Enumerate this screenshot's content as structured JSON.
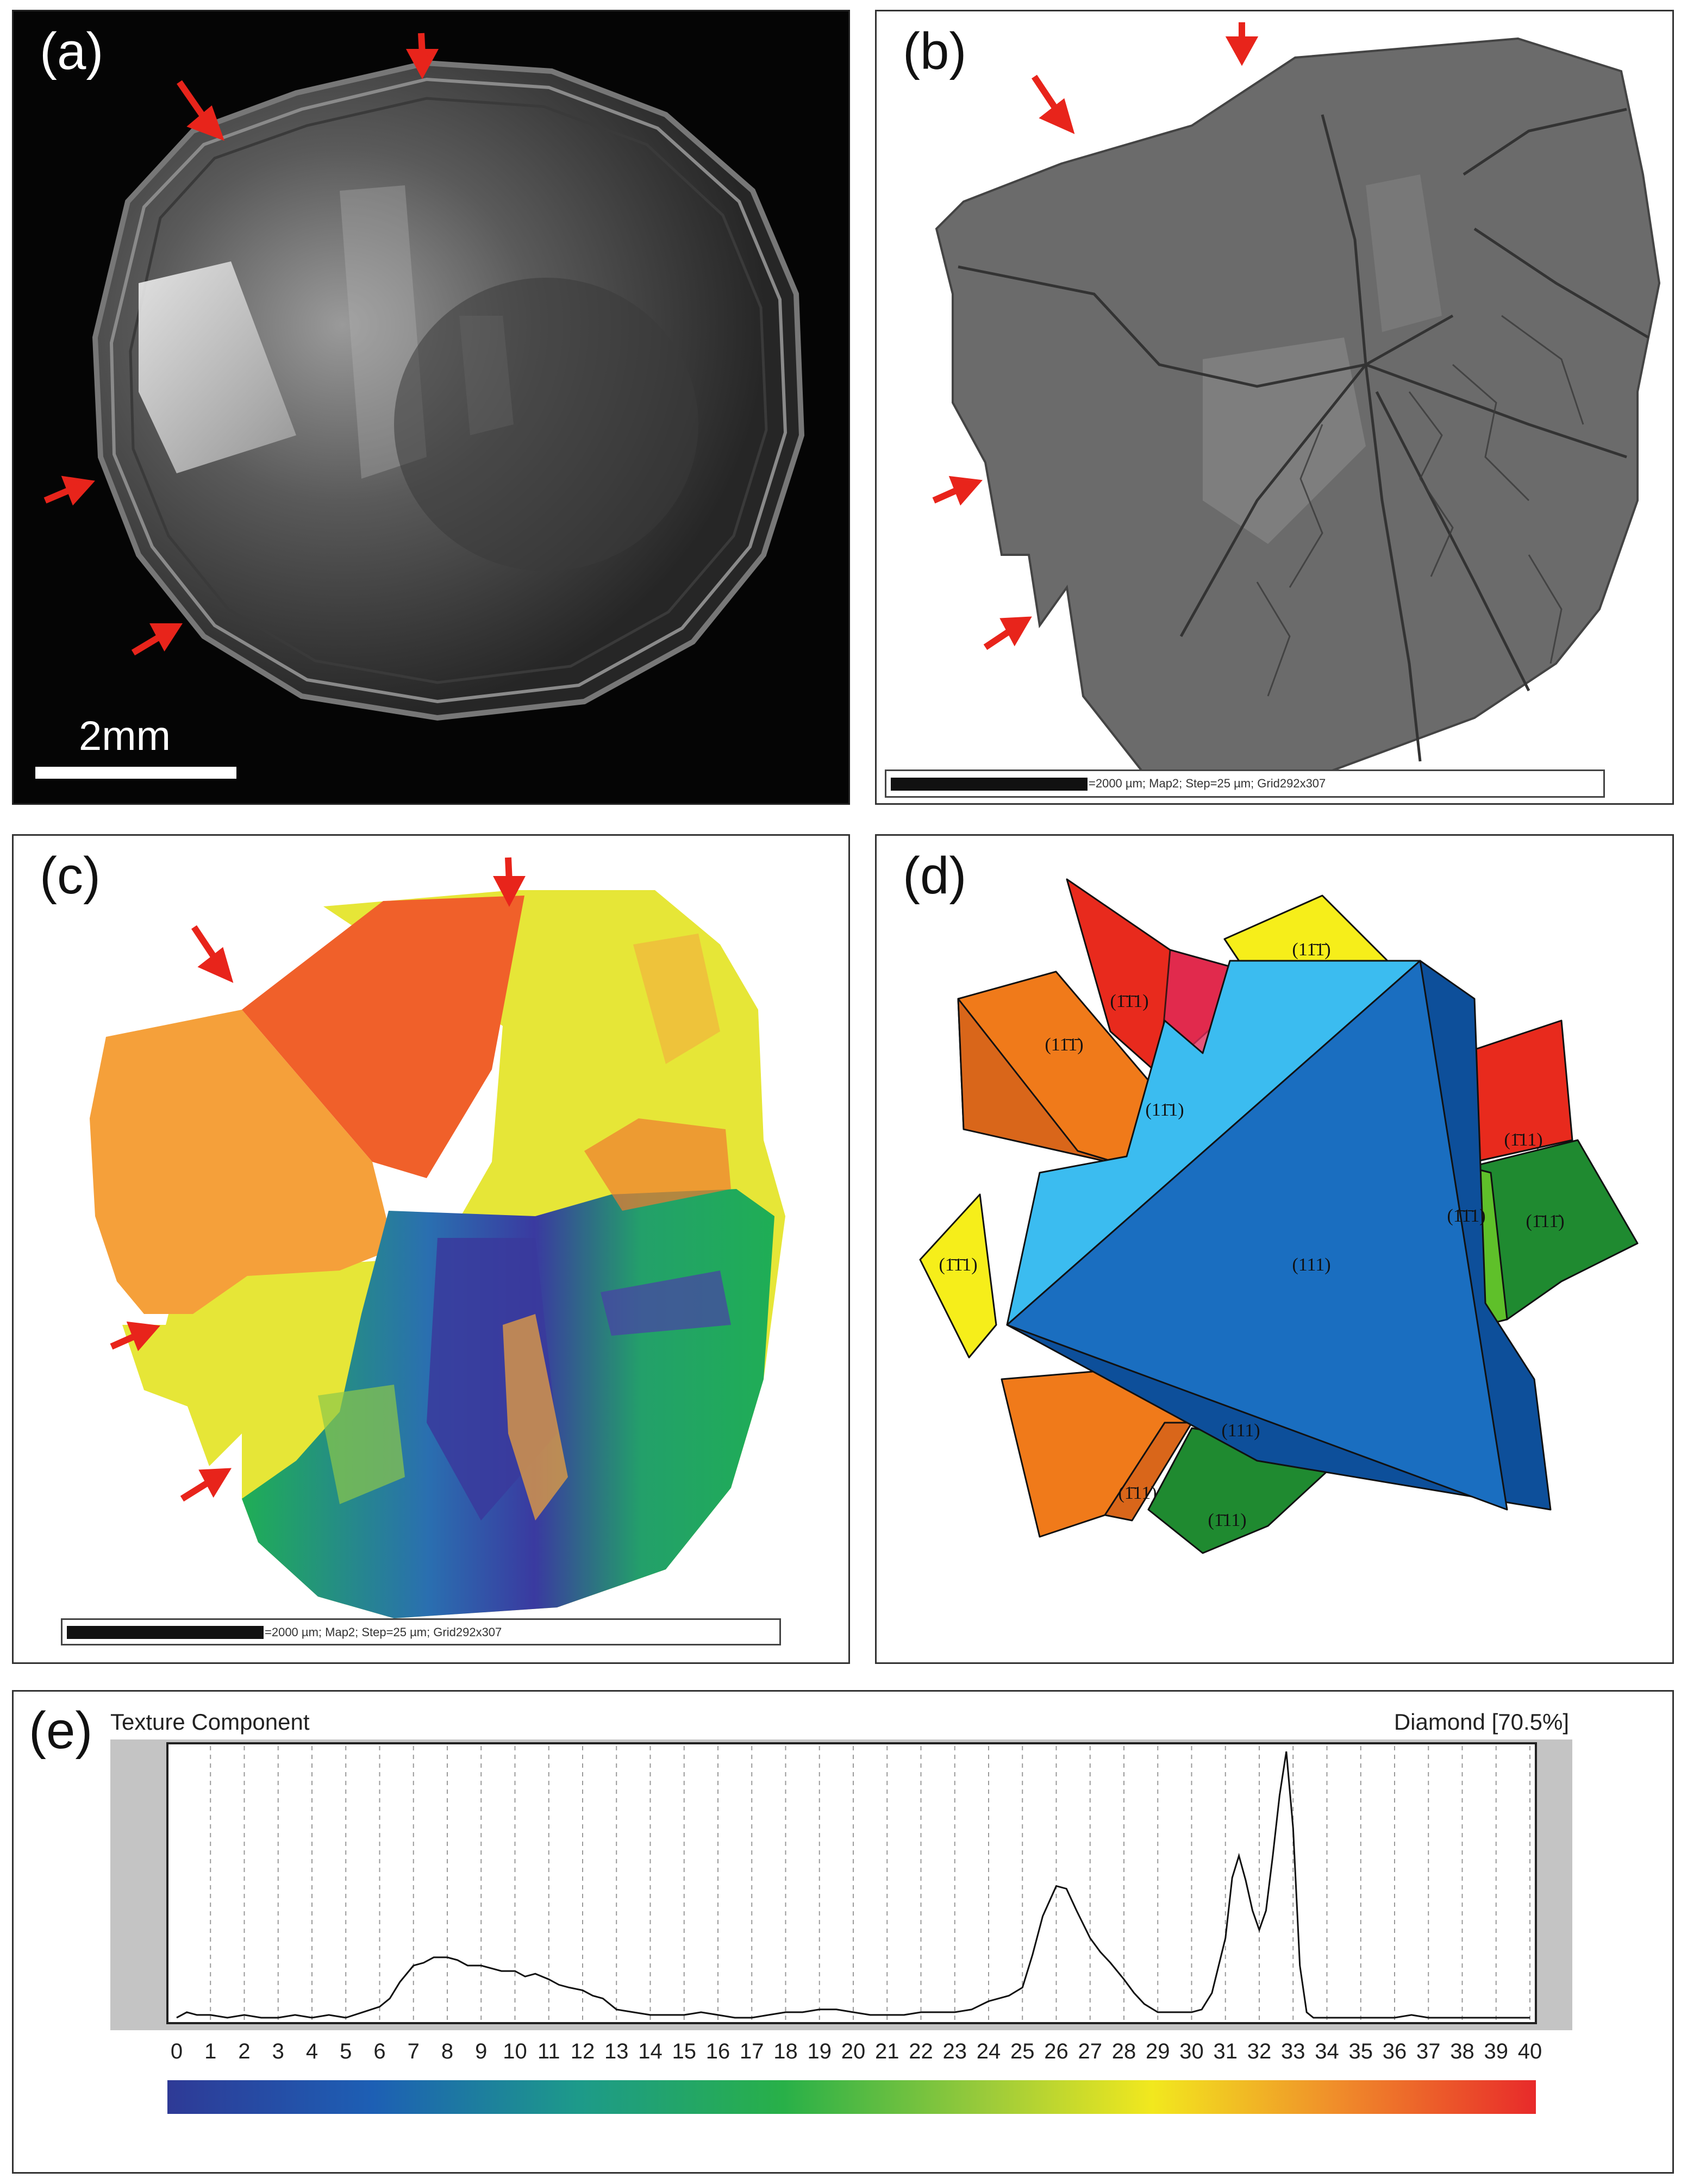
{
  "panels": {
    "a": {
      "label": "(a)",
      "scale_text": "2mm"
    },
    "b": {
      "label": "(b)",
      "scale_text": "=2000 µm; Map2; Step=25 µm; Grid292x307"
    },
    "c": {
      "label": "(c)",
      "scale_text": "=2000 µm; Map2; Step=25 µm; Grid292x307"
    },
    "d": {
      "label": "(d)",
      "facets": [
        {
          "id": "red-top",
          "text": "(1̄1̄1)"
        },
        {
          "id": "orange-left",
          "text": "(11̄1̄)"
        },
        {
          "id": "lightblue",
          "text": "(11̄1)"
        },
        {
          "id": "yellow-top",
          "text": "(11̄1̄)"
        },
        {
          "id": "red-right",
          "text": "(1̄11)"
        },
        {
          "id": "green-right",
          "text": "(1̄11̄)"
        },
        {
          "id": "small-right",
          "text": "(1̄1̄1)"
        },
        {
          "id": "yellow-left",
          "text": "(1̄1̄1)"
        },
        {
          "id": "blue-main",
          "text": "(111)"
        },
        {
          "id": "bottom-small",
          "text": "(111)"
        },
        {
          "id": "orange-bottom",
          "text": "(1̄11)"
        },
        {
          "id": "green-bottom",
          "text": "(1̄11)"
        }
      ]
    },
    "e": {
      "label": "(e)",
      "title_left": "Texture Component",
      "title_right": "Diamond [70.5%]"
    }
  },
  "chart_data": {
    "type": "line",
    "xlabel": "",
    "ylabel": "",
    "xlim": [
      0,
      40
    ],
    "x_ticks": [
      "0",
      "1",
      "2",
      "3",
      "4",
      "5",
      "6",
      "7",
      "8",
      "9",
      "10",
      "11",
      "12",
      "13",
      "14",
      "15",
      "16",
      "17",
      "18",
      "19",
      "20",
      "21",
      "22",
      "23",
      "24",
      "25",
      "26",
      "27",
      "28",
      "29",
      "30",
      "31",
      "32",
      "33",
      "34",
      "35",
      "36",
      "37",
      "38",
      "39",
      "40"
    ],
    "ylim": [
      0,
      100
    ],
    "grid": "vertical dashed",
    "series": [
      {
        "x": [
          0,
          0.3,
          0.6,
          1,
          1.5,
          2,
          2.5,
          3,
          3.5,
          4,
          4.5,
          5,
          5.5,
          6,
          6.3,
          6.6,
          7,
          7.3,
          7.6,
          8,
          8.3,
          8.6,
          9,
          9.3,
          9.6,
          10,
          10.3,
          10.6,
          11,
          11.3,
          11.6,
          12,
          12.3,
          12.6,
          13,
          13.5,
          14,
          14.5,
          15,
          15.5,
          16,
          16.5,
          17,
          17.5,
          18,
          18.5,
          19,
          19.5,
          20,
          20.5,
          21,
          21.5,
          22,
          22.5,
          23,
          23.5,
          24,
          24.3,
          24.6,
          25,
          25.3,
          25.6,
          26,
          26.3,
          26.6,
          27,
          27.3,
          27.6,
          28,
          28.3,
          28.6,
          29,
          29.5,
          30,
          30.3,
          30.6,
          31,
          31.2,
          31.4,
          31.6,
          31.8,
          32,
          32.2,
          32.4,
          32.6,
          32.8,
          33,
          33.2,
          33.4,
          33.6,
          34,
          34.5,
          35,
          35.5,
          36,
          36.5,
          37,
          37.5,
          38,
          38.5,
          39,
          39.5,
          40
        ],
        "y": [
          1,
          3,
          2,
          2,
          1,
          2,
          1,
          1,
          2,
          1,
          2,
          1,
          3,
          5,
          8,
          14,
          20,
          21,
          23,
          23,
          22,
          20,
          20,
          19,
          18,
          18,
          16,
          17,
          15,
          13,
          12,
          11,
          9,
          8,
          4,
          3,
          2,
          2,
          2,
          3,
          2,
          1,
          1,
          2,
          3,
          3,
          4,
          4,
          3,
          2,
          2,
          2,
          3,
          3,
          3,
          4,
          7,
          8,
          9,
          12,
          24,
          38,
          49,
          48,
          40,
          30,
          25,
          21,
          15,
          10,
          6,
          3,
          3,
          3,
          4,
          10,
          30,
          52,
          60,
          51,
          40,
          33,
          40,
          60,
          82,
          98,
          70,
          20,
          3,
          1,
          1,
          1,
          1,
          1,
          1,
          2,
          1,
          1,
          1,
          1,
          1,
          1,
          1
        ]
      }
    ]
  }
}
